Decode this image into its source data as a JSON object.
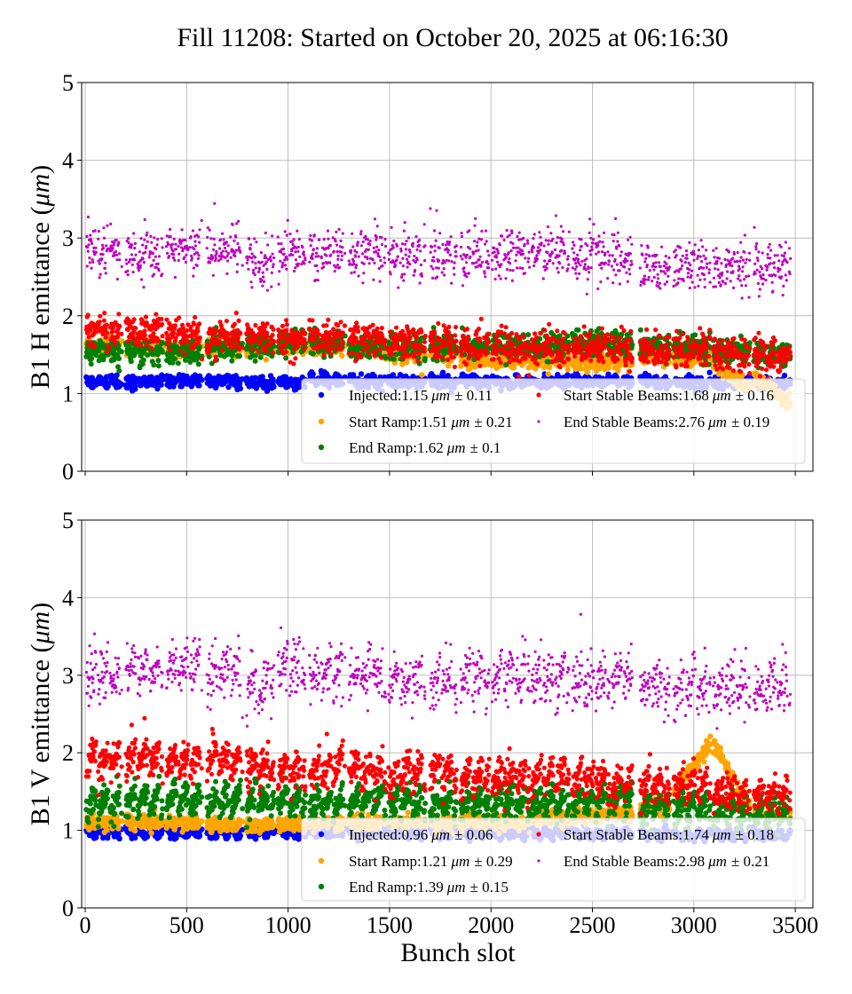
{
  "title": "Fill 11208: Started on October 20, 2025 at 06:16:30",
  "chart_data": [
    {
      "type": "scatter",
      "ylabel": "B1 H emittance (",
      "ylabel_unit": "μm",
      "ylabel_close": ")",
      "xlabel": "",
      "xlim": [
        -17.5,
        3587
      ],
      "ylim": [
        0,
        5
      ],
      "xticks": [
        0,
        500,
        1000,
        1500,
        2000,
        2500,
        3000,
        3500
      ],
      "xtick_labels_shown": false,
      "yticks": [
        0,
        1,
        2,
        3,
        4,
        5
      ],
      "grid": true,
      "legend_placement": "lower-right",
      "trains": [
        [
          5,
          180
        ],
        [
          200,
          380
        ],
        [
          400,
          575
        ],
        [
          600,
          775
        ],
        [
          795,
          930
        ],
        [
          950,
          1085
        ],
        [
          1105,
          1280
        ],
        [
          1300,
          1480
        ],
        [
          1495,
          1675
        ],
        [
          1700,
          1830
        ],
        [
          1850,
          1990
        ],
        [
          2005,
          2190
        ],
        [
          2200,
          2385
        ],
        [
          2400,
          2585
        ],
        [
          2595,
          2695
        ],
        [
          2735,
          2880
        ],
        [
          2900,
          3080
        ],
        [
          3095,
          3275
        ],
        [
          3295,
          3475
        ]
      ],
      "series": [
        {
          "name": "Injected",
          "legend_label": "Injected:1.15",
          "unit": "μm",
          "pm": "± 0.11",
          "mean": 1.15,
          "std": 0.11,
          "color": "#0000ff",
          "train_levels": [
            1.15,
            1.15,
            1.17,
            1.15,
            1.13,
            1.15,
            1.18,
            1.15,
            1.15,
            1.15,
            1.15,
            1.15,
            1.15,
            1.15,
            1.15,
            1.15,
            1.15,
            1.14,
            1.13
          ]
        },
        {
          "name": "Start Ramp",
          "legend_label": "Start Ramp:1.51",
          "unit": "μm",
          "pm": "± 0.21",
          "mean": 1.51,
          "std": 0.21,
          "color": "#ffa500",
          "train_levels": [
            1.62,
            1.6,
            1.6,
            1.58,
            1.58,
            1.6,
            1.6,
            1.55,
            1.5,
            1.5,
            1.42,
            1.42,
            1.42,
            1.4,
            1.42,
            1.45,
            1.45,
            [
              1.4,
              1.05
            ],
            [
              1.2,
              0.9
            ]
          ]
        },
        {
          "name": "End Ramp",
          "legend_label": "End Ramp:1.62",
          "unit": "μm",
          "pm": "± 0.1",
          "mean": 1.62,
          "std": 0.1,
          "color": "#008000",
          "train_levels": [
            1.55,
            1.55,
            1.55,
            1.6,
            1.62,
            1.65,
            1.65,
            1.6,
            1.6,
            1.6,
            1.62,
            1.6,
            1.62,
            1.65,
            1.65,
            1.62,
            1.6,
            1.55,
            1.5
          ]
        },
        {
          "name": "Start Stable Beams",
          "legend_label": "Start Stable Beams:1.68",
          "unit": "μm",
          "pm": "± 0.16",
          "mean": 1.68,
          "std": 0.16,
          "color": "#ff0000",
          "train_levels": [
            1.8,
            1.8,
            1.75,
            1.72,
            1.72,
            1.7,
            1.72,
            1.68,
            1.65,
            1.65,
            1.6,
            1.6,
            1.6,
            1.58,
            1.58,
            1.55,
            1.55,
            1.5,
            1.5
          ]
        },
        {
          "name": "End Stable Beams",
          "legend_label": "End Stable Beams:2.76",
          "unit": "μm",
          "pm": "± 0.19",
          "mean": 2.76,
          "std": 0.19,
          "color": "#bf00bf",
          "train_levels": [
            2.85,
            2.8,
            2.9,
            2.85,
            2.7,
            2.8,
            2.8,
            2.8,
            2.78,
            2.75,
            2.75,
            2.8,
            2.8,
            2.75,
            2.75,
            2.65,
            2.65,
            2.6,
            2.65
          ]
        }
      ]
    },
    {
      "type": "scatter",
      "ylabel": "B1 V emittance (",
      "ylabel_unit": "μm",
      "ylabel_close": ")",
      "xlabel": "Bunch slot",
      "xlim": [
        -17.5,
        3587
      ],
      "ylim": [
        0,
        5
      ],
      "xticks": [
        0,
        500,
        1000,
        1500,
        2000,
        2500,
        3000,
        3500
      ],
      "xtick_labels_shown": true,
      "yticks": [
        0,
        1,
        2,
        3,
        4,
        5
      ],
      "grid": true,
      "legend_placement": "lower-right",
      "trains": [
        [
          5,
          180
        ],
        [
          200,
          380
        ],
        [
          400,
          575
        ],
        [
          600,
          775
        ],
        [
          795,
          930
        ],
        [
          950,
          1085
        ],
        [
          1105,
          1280
        ],
        [
          1300,
          1480
        ],
        [
          1495,
          1675
        ],
        [
          1700,
          1830
        ],
        [
          1850,
          1990
        ],
        [
          2005,
          2190
        ],
        [
          2200,
          2385
        ],
        [
          2400,
          2585
        ],
        [
          2595,
          2695
        ],
        [
          2735,
          2880
        ],
        [
          2900,
          3080
        ],
        [
          3095,
          3275
        ],
        [
          3295,
          3475
        ]
      ],
      "series": [
        {
          "name": "Injected",
          "legend_label": "Injected:0.96",
          "unit": "μm",
          "pm": "± 0.06",
          "mean": 0.96,
          "std": 0.06,
          "color": "#0000ff",
          "train_levels": [
            0.98,
            0.97,
            0.97,
            0.97,
            0.97,
            0.97,
            0.97,
            0.96,
            0.96,
            0.96,
            0.96,
            0.96,
            0.96,
            0.95,
            0.95,
            0.95,
            0.94,
            0.94,
            0.94
          ]
        },
        {
          "name": "Start Ramp",
          "legend_label": "Start Ramp:1.21",
          "unit": "μm",
          "pm": "± 0.29",
          "mean": 1.21,
          "std": 0.29,
          "color": "#ffa500",
          "train_levels": [
            1.1,
            1.1,
            1.1,
            1.07,
            1.07,
            1.08,
            1.1,
            1.1,
            1.1,
            1.1,
            1.1,
            1.1,
            1.15,
            1.2,
            1.2,
            1.3,
            [
              1.5,
              2.1
            ],
            [
              2.1,
              1.3
            ],
            1.2
          ]
        },
        {
          "name": "End Ramp",
          "legend_label": "End Ramp:1.39",
          "unit": "μm",
          "pm": "± 0.15",
          "mean": 1.39,
          "std": 0.15,
          "color": "#008000",
          "train_levels": [
            1.35,
            1.4,
            1.4,
            1.4,
            1.4,
            1.4,
            1.35,
            1.4,
            1.35,
            1.35,
            1.35,
            1.35,
            1.35,
            1.35,
            1.4,
            1.3,
            1.3,
            1.25,
            1.22
          ]
        },
        {
          "name": "Start Stable Beams",
          "legend_label": "Start Stable Beams:1.74",
          "unit": "μm",
          "pm": "± 0.18",
          "mean": 1.74,
          "std": 0.18,
          "color": "#ff0000",
          "train_levels": [
            1.9,
            1.95,
            1.9,
            1.9,
            1.85,
            1.8,
            1.8,
            1.8,
            1.75,
            1.75,
            1.7,
            1.7,
            1.7,
            1.65,
            1.62,
            1.58,
            1.6,
            1.48,
            1.48
          ]
        },
        {
          "name": "End Stable Beams",
          "legend_label": "End Stable Beams:2.98",
          "unit": "μm",
          "pm": "± 0.21",
          "mean": 2.98,
          "std": 0.21,
          "color": "#bf00bf",
          "train_levels": [
            3.0,
            3.05,
            3.1,
            3.05,
            2.85,
            3.1,
            3.05,
            3.0,
            2.95,
            3.0,
            3.0,
            3.0,
            2.95,
            2.95,
            3.0,
            2.85,
            2.85,
            2.8,
            2.85
          ]
        }
      ]
    }
  ]
}
